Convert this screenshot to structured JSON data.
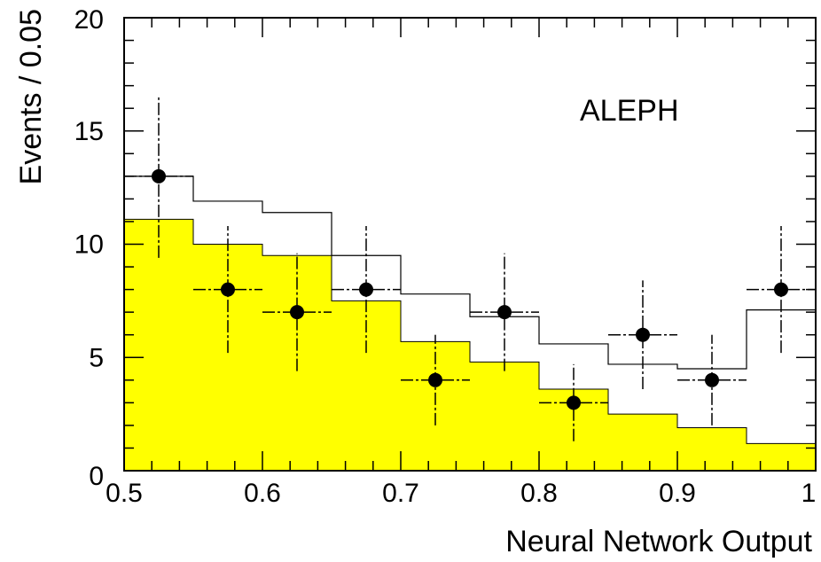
{
  "chart_data": {
    "type": "bar",
    "xlabel": "Neural Network Output",
    "ylabel": "Events / 0.05",
    "annotation": "ALEPH",
    "xlim": [
      0.5,
      1.0
    ],
    "ylim": [
      0,
      20
    ],
    "x_ticks": [
      "0.5",
      "0.6",
      "0.7",
      "0.8",
      "0.9",
      "1"
    ],
    "y_ticks": [
      "0",
      "5",
      "10",
      "15",
      "20"
    ],
    "bin_edges": [
      0.5,
      0.55,
      0.6,
      0.65,
      0.7,
      0.75,
      0.8,
      0.85,
      0.9,
      0.95,
      1.0
    ],
    "colors": {
      "fill": "#ffff00",
      "line": "#000000"
    },
    "series": [
      {
        "style": "filled-histogram",
        "values": [
          11.1,
          10.0,
          9.5,
          7.5,
          5.7,
          4.8,
          3.6,
          2.5,
          1.9,
          1.2
        ]
      },
      {
        "style": "outline-histogram",
        "values": [
          13.0,
          11.9,
          11.4,
          9.5,
          7.8,
          6.8,
          5.6,
          4.7,
          4.5,
          7.1
        ]
      },
      {
        "style": "data-points",
        "x": [
          0.525,
          0.575,
          0.625,
          0.675,
          0.725,
          0.775,
          0.825,
          0.875,
          0.925,
          0.975
        ],
        "values": [
          13,
          8,
          7,
          8,
          4,
          7,
          3,
          6,
          4,
          8
        ],
        "yerr_low": [
          3.6,
          2.8,
          2.6,
          2.8,
          2.0,
          2.6,
          1.7,
          2.4,
          2.0,
          2.8
        ],
        "yerr_high": [
          3.6,
          2.8,
          2.6,
          2.8,
          2.0,
          2.6,
          1.7,
          2.4,
          2.0,
          2.8
        ],
        "xerr": 0.025
      }
    ]
  }
}
